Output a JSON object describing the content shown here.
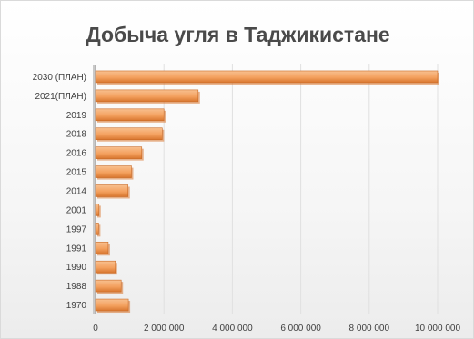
{
  "chart_data": {
    "type": "bar",
    "orientation": "horizontal",
    "title": "Добыча угля в Таджикистане",
    "categories": [
      "2030 (ПЛАН)",
      "2021(ПЛАН)",
      "2019",
      "2018",
      "2016",
      "2015",
      "2014",
      "2001",
      "1997",
      "1991",
      "1990",
      "1988",
      "1970"
    ],
    "values": [
      10000000,
      3000000,
      2000000,
      1950000,
      1350000,
      1050000,
      950000,
      100000,
      90000,
      370000,
      580000,
      750000,
      960000
    ],
    "xlim": [
      0,
      10000000
    ],
    "xticks": [
      "0",
      "2 000 000",
      "4 000 000",
      "6 000 000",
      "8 000 000",
      "10 000 000"
    ],
    "xlabel": "",
    "ylabel": "",
    "grid": true,
    "legend": "none",
    "colors": {
      "bar": "#f4a15f",
      "bar_light": "#f8c08f",
      "bar_dark": "#d8762f",
      "axis": "#a0a0a0",
      "grid": "#e0e0e0"
    }
  }
}
